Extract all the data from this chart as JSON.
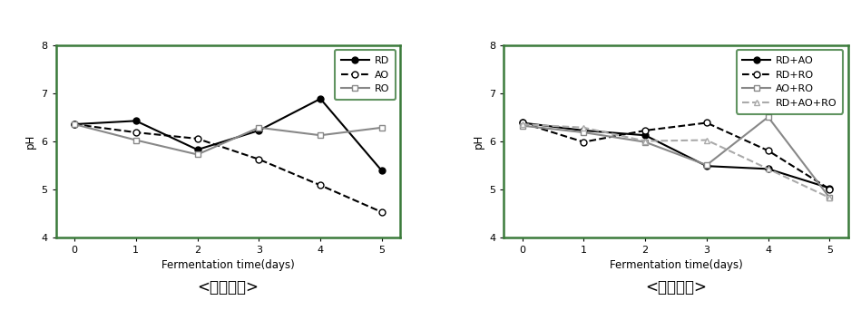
{
  "days": [
    0,
    1,
    2,
    3,
    4,
    5
  ],
  "left": {
    "RD": [
      6.35,
      6.42,
      5.82,
      6.22,
      6.88,
      5.38
    ],
    "AO": [
      6.35,
      6.18,
      6.05,
      5.62,
      5.08,
      4.52
    ],
    "RO": [
      6.35,
      6.02,
      5.72,
      6.28,
      6.12,
      6.28
    ]
  },
  "right": {
    "RD+AO": [
      6.38,
      6.22,
      6.12,
      5.48,
      5.42,
      5.02
    ],
    "RD+RO": [
      6.38,
      5.98,
      6.22,
      6.38,
      5.8,
      5.0
    ],
    "AO+RO": [
      6.32,
      6.18,
      5.98,
      5.5,
      6.5,
      4.82
    ],
    "RD+AO+RO": [
      6.35,
      6.28,
      6.0,
      6.02,
      5.42,
      4.82
    ]
  },
  "ylim": [
    4,
    8
  ],
  "yticks": [
    4,
    5,
    6,
    7,
    8
  ],
  "xlabel": "Fermentation time(days)",
  "ylabel": "pH",
  "left_title": "<단독발효>",
  "right_title": "<혼합발효>",
  "border_color": "#3a7a3a",
  "bg_color": "#ffffff"
}
